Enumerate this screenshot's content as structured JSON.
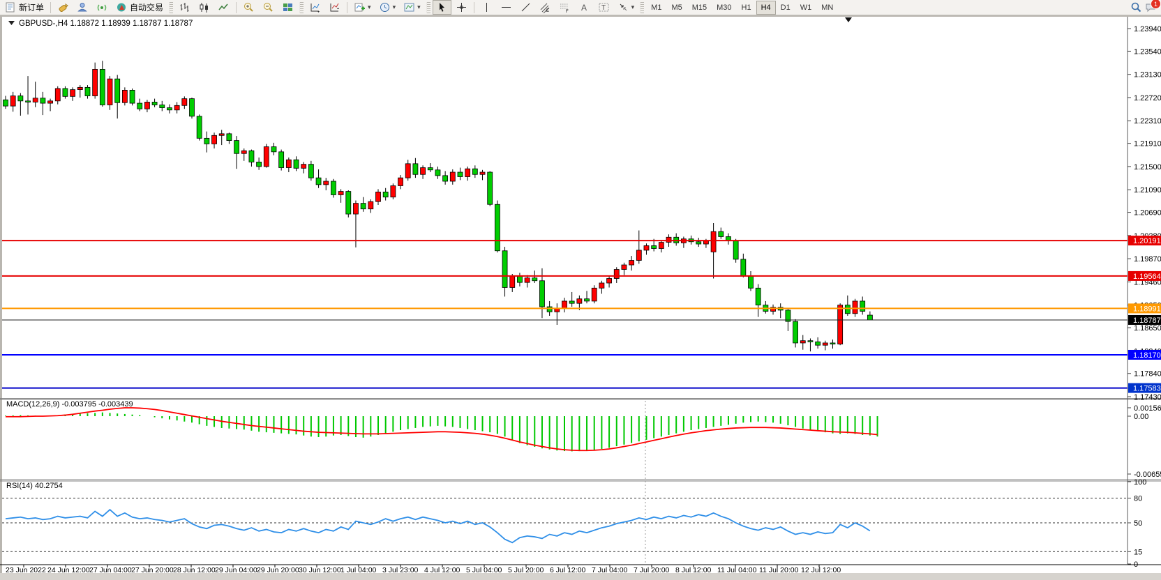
{
  "toolbar": {
    "new_order_label": "新订单",
    "auto_trading_label": "自动交易",
    "timeframes": [
      "M1",
      "M5",
      "M15",
      "M30",
      "H1",
      "H4",
      "D1",
      "W1",
      "MN"
    ],
    "active_timeframe": "H4",
    "notification_count": "1",
    "icon_names": [
      "styles-icon",
      "profile-icon",
      "signals-icon",
      "algo-trading-icon",
      "bar-chart-icon",
      "candlestick-icon",
      "line-chart-icon",
      "zoom-in-icon",
      "zoom-out-icon",
      "tile-windows-icon",
      "indicator-window-icon",
      "indicator-list-icon",
      "add-indicator-icon",
      "period-clock-icon",
      "template-icon",
      "cursor-icon",
      "crosshair-icon",
      "vertical-line-icon",
      "horizontal-line-icon",
      "trendline-icon",
      "equidistant-channel-icon",
      "fibonacci-icon",
      "text-icon",
      "text-label-icon",
      "shapes-icon",
      "search-icon",
      "chat-icon"
    ]
  },
  "chart": {
    "title": "GBPUSD-,H4",
    "ohlc_text": "1.18872 1.18939 1.18787 1.18787",
    "price_ticks": [
      "1.23940",
      "1.23540",
      "1.23130",
      "1.22720",
      "1.22310",
      "1.21910",
      "1.21500",
      "1.21090",
      "1.20690",
      "1.20280",
      "1.19870",
      "1.19460",
      "1.19050",
      "1.18650",
      "1.18240",
      "1.17840",
      "1.17430"
    ],
    "level_lines": [
      {
        "price": 1.20191,
        "label": "1.20191",
        "color": "#e60000",
        "tag_bg": "#e60000"
      },
      {
        "price": 1.19564,
        "label": "1.19564",
        "color": "#e60000",
        "tag_bg": "#e60000"
      },
      {
        "price": 1.18991,
        "label": "1.18991",
        "color": "#ff9900",
        "tag_bg": "#ff9900"
      },
      {
        "price": 1.1817,
        "label": "1.18170",
        "color": "#0000ff",
        "tag_bg": "#0000ff"
      },
      {
        "price": 1.17583,
        "label": "1.17583",
        "color": "#0000c8",
        "tag_bg": "#0033cc"
      }
    ],
    "current_price": {
      "price": 1.18787,
      "label": "1.18787",
      "color": "#000000",
      "tag_bg": "#000000"
    }
  },
  "macd_pane": {
    "label": "MACD(12,26,9) -0.003795 -0.003439",
    "axis_labels": [
      {
        "value": "0.001564",
        "v": 1.564
      },
      {
        "value": "0.00",
        "v": 0
      },
      {
        "value": "-0.006555",
        "v": -6.555
      }
    ]
  },
  "rsi_pane": {
    "label": "RSI(14) 40.2754",
    "axis_labels": [
      {
        "value": "100",
        "v": 100
      },
      {
        "value": "80",
        "v": 80
      },
      {
        "value": "50",
        "v": 50
      },
      {
        "value": "15",
        "v": 15
      },
      {
        "value": "0",
        "v": 0
      }
    ],
    "dotted_levels": [
      80,
      50,
      15
    ]
  },
  "time_axis": [
    "23 Jun 2022",
    "24 Jun 12:00",
    "27 Jun 04:00",
    "27 Jun 20:00",
    "28 Jun 12:00",
    "29 Jun 04:00",
    "29 Jun 20:00",
    "30 Jun 12:00",
    "1 Jul 04:00",
    "3 Jul 23:00",
    "4 Jul 12:00",
    "5 Jul 04:00",
    "5 Jul 20:00",
    "6 Jul 12:00",
    "7 Jul 04:00",
    "7 Jul 20:00",
    "8 Jul 12:00",
    "11 Jul 04:00",
    "11 Jul 20:00",
    "12 Jul 12:00"
  ],
  "colors": {
    "bull_candle": "#ff0000",
    "bear_candle": "#00cd00",
    "candle_outline": "#000000",
    "macd_hist": "#00c800",
    "macd_signal": "#ff0000",
    "rsi_line": "#2f8fe8",
    "axis_text": "#000000",
    "pane_separator": "#808080"
  },
  "chart_data": {
    "type": "candlestick",
    "symbol": "GBPUSD-",
    "timeframe": "H4",
    "note": "candles are [open,high,low,close]; bull candles red, bear candles green (CN convention); macd values in 1e-3 units",
    "price_axis_range": [
      1.1743,
      1.2394
    ],
    "candles": [
      [
        1.2268,
        1.2275,
        1.2252,
        1.2257
      ],
      [
        1.2257,
        1.2282,
        1.2247,
        1.2275
      ],
      [
        1.2275,
        1.228,
        1.224,
        1.2266
      ],
      [
        1.2266,
        1.231,
        1.2242,
        1.2264
      ],
      [
        1.2264,
        1.23,
        1.2255,
        1.2271
      ],
      [
        1.2271,
        1.2282,
        1.2241,
        1.2262
      ],
      [
        1.2262,
        1.227,
        1.2248,
        1.2266
      ],
      [
        1.2266,
        1.2292,
        1.226,
        1.2288
      ],
      [
        1.2288,
        1.2292,
        1.227,
        1.2274
      ],
      [
        1.2274,
        1.229,
        1.2266,
        1.2286
      ],
      [
        1.2286,
        1.2294,
        1.2272,
        1.229
      ],
      [
        1.229,
        1.2294,
        1.227,
        1.2275
      ],
      [
        1.2275,
        1.2334,
        1.227,
        1.2322
      ],
      [
        1.2322,
        1.2337,
        1.2256,
        1.2259
      ],
      [
        1.2259,
        1.231,
        1.225,
        1.2305
      ],
      [
        1.2305,
        1.2312,
        1.2235,
        1.2263
      ],
      [
        1.2263,
        1.229,
        1.2258,
        1.2285
      ],
      [
        1.2285,
        1.2288,
        1.2258,
        1.2262
      ],
      [
        1.2262,
        1.227,
        1.2248,
        1.2252
      ],
      [
        1.2252,
        1.2268,
        1.2246,
        1.2264
      ],
      [
        1.2264,
        1.227,
        1.2255,
        1.2259
      ],
      [
        1.2259,
        1.2266,
        1.2248,
        1.2254
      ],
      [
        1.2254,
        1.226,
        1.2244,
        1.225
      ],
      [
        1.225,
        1.2264,
        1.2244,
        1.2258
      ],
      [
        1.2258,
        1.2274,
        1.2252,
        1.227
      ],
      [
        1.227,
        1.2272,
        1.2235,
        1.2239
      ],
      [
        1.2239,
        1.2242,
        1.2196,
        1.22
      ],
      [
        1.22,
        1.2212,
        1.2175,
        1.219
      ],
      [
        1.219,
        1.221,
        1.2182,
        1.2205
      ],
      [
        1.2205,
        1.2215,
        1.2188,
        1.2208
      ],
      [
        1.2208,
        1.221,
        1.219,
        1.2196
      ],
      [
        1.2196,
        1.2204,
        1.2146,
        1.2173
      ],
      [
        1.2173,
        1.2182,
        1.216,
        1.2178
      ],
      [
        1.2178,
        1.218,
        1.215,
        1.2158
      ],
      [
        1.2158,
        1.2166,
        1.2144,
        1.215
      ],
      [
        1.215,
        1.219,
        1.2148,
        1.2185
      ],
      [
        1.2185,
        1.2192,
        1.217,
        1.2176
      ],
      [
        1.2176,
        1.218,
        1.2143,
        1.2148
      ],
      [
        1.2148,
        1.2166,
        1.214,
        1.2162
      ],
      [
        1.2162,
        1.2168,
        1.2142,
        1.2147
      ],
      [
        1.2147,
        1.2158,
        1.2138,
        1.2154
      ],
      [
        1.2154,
        1.216,
        1.2125,
        1.213
      ],
      [
        1.213,
        1.2145,
        1.2112,
        1.2118
      ],
      [
        1.2118,
        1.213,
        1.2108,
        1.2124
      ],
      [
        1.2124,
        1.2128,
        1.2095,
        1.21
      ],
      [
        1.21,
        1.211,
        1.2086,
        1.2106
      ],
      [
        1.2106,
        1.2108,
        1.206,
        1.2066
      ],
      [
        1.2066,
        1.209,
        1.2007,
        1.2085
      ],
      [
        1.2085,
        1.2096,
        1.207,
        1.2075
      ],
      [
        1.2075,
        1.2092,
        1.2068,
        1.2088
      ],
      [
        1.2088,
        1.211,
        1.2082,
        1.2105
      ],
      [
        1.2105,
        1.2112,
        1.209,
        1.2096
      ],
      [
        1.2096,
        1.212,
        1.2092,
        1.2116
      ],
      [
        1.2116,
        1.2135,
        1.211,
        1.213
      ],
      [
        1.213,
        1.2162,
        1.2125,
        1.2155
      ],
      [
        1.2155,
        1.2165,
        1.213,
        1.2136
      ],
      [
        1.2136,
        1.2152,
        1.2128,
        1.2148
      ],
      [
        1.2148,
        1.2156,
        1.214,
        1.2144
      ],
      [
        1.2144,
        1.215,
        1.2128,
        1.2134
      ],
      [
        1.2134,
        1.2142,
        1.2118,
        1.2124
      ],
      [
        1.2124,
        1.2145,
        1.2118,
        1.214
      ],
      [
        1.214,
        1.2148,
        1.2126,
        1.2132
      ],
      [
        1.2132,
        1.215,
        1.2125,
        1.2146
      ],
      [
        1.2146,
        1.2152,
        1.213,
        1.2136
      ],
      [
        1.2136,
        1.2144,
        1.2126,
        1.214
      ],
      [
        1.214,
        1.2142,
        1.208,
        1.2083
      ],
      [
        1.2083,
        1.209,
        1.1998,
        1.2001
      ],
      [
        1.2001,
        1.2008,
        1.192,
        1.1936
      ],
      [
        1.1936,
        1.196,
        1.1928,
        1.1956
      ],
      [
        1.1956,
        1.1962,
        1.1938,
        1.1945
      ],
      [
        1.1945,
        1.1958,
        1.1936,
        1.1953
      ],
      [
        1.1953,
        1.1966,
        1.1944,
        1.1948
      ],
      [
        1.1948,
        1.197,
        1.1882,
        1.1902
      ],
      [
        1.1902,
        1.1912,
        1.1886,
        1.1893
      ],
      [
        1.1893,
        1.1908,
        1.187,
        1.1899
      ],
      [
        1.1899,
        1.1918,
        1.1892,
        1.1912
      ],
      [
        1.1912,
        1.1928,
        1.1902,
        1.1908
      ],
      [
        1.1908,
        1.1922,
        1.1896,
        1.1916
      ],
      [
        1.1916,
        1.193,
        1.1908,
        1.1912
      ],
      [
        1.1912,
        1.194,
        1.1908,
        1.1935
      ],
      [
        1.1935,
        1.1948,
        1.1925,
        1.1944
      ],
      [
        1.1944,
        1.1956,
        1.1936,
        1.1952
      ],
      [
        1.1952,
        1.1972,
        1.1944,
        1.1968
      ],
      [
        1.1968,
        1.198,
        1.1958,
        1.1976
      ],
      [
        1.1976,
        1.1992,
        1.1966,
        1.1984
      ],
      [
        1.1984,
        1.2037,
        1.1978,
        1.2002
      ],
      [
        1.2002,
        1.2014,
        1.1994,
        1.201
      ],
      [
        1.201,
        1.2022,
        1.2,
        1.2005
      ],
      [
        1.2005,
        1.202,
        1.1998,
        1.2016
      ],
      [
        1.2016,
        1.203,
        1.2008,
        1.2025
      ],
      [
        1.2025,
        1.2032,
        1.201,
        1.2015
      ],
      [
        1.2015,
        1.2026,
        1.2006,
        1.2022
      ],
      [
        1.2022,
        1.2028,
        1.2012,
        1.2017
      ],
      [
        1.2017,
        1.2024,
        1.2008,
        1.2013
      ],
      [
        1.2013,
        1.2022,
        1.2006,
        1.2019
      ],
      [
        1.1999,
        1.205,
        1.1952,
        1.2035
      ],
      [
        1.2035,
        1.2042,
        1.2022,
        1.2026
      ],
      [
        1.2026,
        1.2032,
        1.2012,
        1.2019
      ],
      [
        1.2019,
        1.2022,
        1.198,
        1.1986
      ],
      [
        1.1986,
        1.1996,
        1.1954,
        1.1957
      ],
      [
        1.1957,
        1.1965,
        1.193,
        1.1935
      ],
      [
        1.1935,
        1.1942,
        1.1884,
        1.1905
      ],
      [
        1.1905,
        1.1912,
        1.189,
        1.1894
      ],
      [
        1.1894,
        1.1906,
        1.1888,
        1.1901
      ],
      [
        1.1901,
        1.1908,
        1.1882,
        1.1896
      ],
      [
        1.1896,
        1.19,
        1.1859,
        1.1876
      ],
      [
        1.1876,
        1.188,
        1.183,
        1.1838
      ],
      [
        1.1838,
        1.1852,
        1.1826,
        1.1842
      ],
      [
        1.1842,
        1.1846,
        1.1823,
        1.184
      ],
      [
        1.184,
        1.1848,
        1.1828,
        1.1834
      ],
      [
        1.1834,
        1.1842,
        1.1825,
        1.1838
      ],
      [
        1.1838,
        1.1844,
        1.1828,
        1.1836
      ],
      [
        1.1836,
        1.1908,
        1.1834,
        1.1905
      ],
      [
        1.1905,
        1.1922,
        1.1886,
        1.189
      ],
      [
        1.189,
        1.1916,
        1.1884,
        1.1912
      ],
      [
        1.1912,
        1.192,
        1.1888,
        1.1894
      ],
      [
        1.18872,
        1.18939,
        1.18787,
        1.18787
      ]
    ],
    "macd_hist": [
      0.1,
      0.15,
      0.2,
      0.15,
      0.1,
      0.05,
      0.1,
      0.2,
      0.3,
      0.4,
      0.5,
      0.55,
      0.6,
      0.7,
      0.6,
      0.5,
      0.4,
      0.3,
      0.2,
      0.0,
      -0.2,
      -0.4,
      -0.6,
      -0.8,
      -1.0,
      -1.2,
      -1.5,
      -1.8,
      -2.0,
      -2.2,
      -2.3,
      -2.4,
      -2.5,
      -2.7,
      -2.9,
      -3.0,
      -3.1,
      -3.2,
      -3.3,
      -3.4,
      -3.6,
      -3.8,
      -3.9,
      -3.8,
      -3.6,
      -3.5,
      -3.7,
      -3.9,
      -4.0,
      -3.8,
      -3.5,
      -3.2,
      -2.9,
      -2.6,
      -2.4,
      -2.2,
      -2.0,
      -1.9,
      -1.8,
      -1.9,
      -2.0,
      -2.2,
      -2.4,
      -2.6,
      -2.8,
      -3.0,
      -3.3,
      -3.8,
      -4.4,
      -5.0,
      -5.4,
      -5.7,
      -6.0,
      -6.2,
      -6.4,
      -6.5,
      -6.55,
      -6.5,
      -6.4,
      -6.3,
      -6.1,
      -5.9,
      -5.6,
      -5.3,
      -5.0,
      -4.7,
      -4.4,
      -4.1,
      -3.8,
      -3.5,
      -3.2,
      -2.9,
      -2.6,
      -2.4,
      -2.2,
      -2.0,
      -1.8,
      -1.6,
      -1.4,
      -1.2,
      -1.1,
      -1.0,
      -1.1,
      -1.2,
      -1.4,
      -1.7,
      -2.0,
      -2.3,
      -2.6,
      -2.8,
      -3.0,
      -3.2,
      -3.3,
      -3.2,
      -3.3,
      -3.5,
      -3.6,
      -3.795
    ],
    "macd_signal": [
      -0.1,
      -0.1,
      -0.1,
      -0.05,
      0,
      0,
      0.05,
      0.1,
      0.2,
      0.35,
      0.55,
      0.75,
      0.95,
      1.1,
      1.3,
      1.45,
      1.56,
      1.56,
      1.5,
      1.4,
      1.25,
      1.05,
      0.8,
      0.55,
      0.3,
      0.05,
      -0.2,
      -0.45,
      -0.7,
      -0.95,
      -1.15,
      -1.35,
      -1.55,
      -1.75,
      -1.9,
      -2.05,
      -2.2,
      -2.35,
      -2.5,
      -2.65,
      -2.8,
      -2.9,
      -3.0,
      -3.05,
      -3.1,
      -3.15,
      -3.2,
      -3.25,
      -3.3,
      -3.3,
      -3.3,
      -3.25,
      -3.2,
      -3.15,
      -3.1,
      -3.05,
      -3.0,
      -2.95,
      -2.9,
      -2.9,
      -2.95,
      -3.0,
      -3.1,
      -3.2,
      -3.35,
      -3.55,
      -3.8,
      -4.1,
      -4.45,
      -4.8,
      -5.1,
      -5.4,
      -5.65,
      -5.9,
      -6.1,
      -6.25,
      -6.35,
      -6.4,
      -6.4,
      -6.35,
      -6.25,
      -6.1,
      -5.9,
      -5.65,
      -5.4,
      -5.1,
      -4.8,
      -4.5,
      -4.2,
      -3.9,
      -3.6,
      -3.35,
      -3.1,
      -2.9,
      -2.7,
      -2.55,
      -2.4,
      -2.3,
      -2.2,
      -2.15,
      -2.1,
      -2.1,
      -2.1,
      -2.15,
      -2.2,
      -2.3,
      -2.4,
      -2.5,
      -2.6,
      -2.7,
      -2.8,
      -2.9,
      -2.95,
      -3.0,
      -3.1,
      -3.2,
      -3.3,
      -3.44
    ],
    "rsi": [
      55,
      56,
      57,
      55,
      56,
      54,
      55,
      58,
      56,
      57,
      58,
      56,
      64,
      58,
      66,
      58,
      62,
      57,
      55,
      56,
      54,
      53,
      51,
      53,
      55,
      49,
      45,
      43,
      47,
      48,
      46,
      43,
      41,
      44,
      40,
      42,
      39,
      38,
      42,
      40,
      43,
      40,
      38,
      42,
      40,
      45,
      42,
      52,
      50,
      48,
      51,
      55,
      52,
      55,
      57,
      54,
      57,
      55,
      53,
      50,
      52,
      49,
      52,
      48,
      50,
      45,
      38,
      30,
      26,
      32,
      34,
      33,
      31,
      36,
      34,
      38,
      36,
      40,
      38,
      41,
      44,
      46,
      49,
      51,
      53,
      56,
      54,
      57,
      55,
      58,
      56,
      59,
      57,
      60,
      58,
      62,
      58,
      55,
      50,
      46,
      43,
      41,
      44,
      42,
      45,
      40,
      36,
      38,
      36,
      39,
      37,
      38,
      48,
      44,
      50,
      46,
      40.2754
    ]
  }
}
